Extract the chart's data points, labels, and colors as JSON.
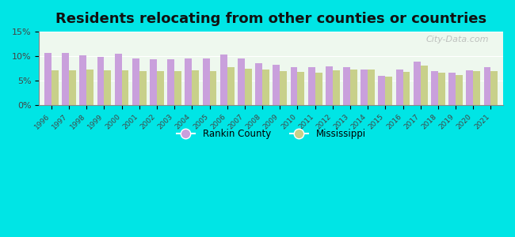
{
  "title": "Residents relocating from other counties or countries",
  "years": [
    1996,
    1997,
    1998,
    1999,
    2000,
    2001,
    2002,
    2003,
    2004,
    2005,
    2006,
    2007,
    2008,
    2009,
    2010,
    2011,
    2012,
    2013,
    2014,
    2015,
    2016,
    2017,
    2018,
    2019,
    2020,
    2021
  ],
  "rankin": [
    10.6,
    10.6,
    10.1,
    9.9,
    10.5,
    9.6,
    9.4,
    9.4,
    9.5,
    9.6,
    10.3,
    9.5,
    8.6,
    8.2,
    7.7,
    7.7,
    7.9,
    7.8,
    7.2,
    6.0,
    7.2,
    8.8,
    7.0,
    6.6,
    7.1,
    7.7
  ],
  "mississippi": [
    7.1,
    7.1,
    7.2,
    7.1,
    7.1,
    7.0,
    7.0,
    7.0,
    7.1,
    7.0,
    7.8,
    7.4,
    7.2,
    7.0,
    6.8,
    6.6,
    7.1,
    7.3,
    7.3,
    5.8,
    6.7,
    8.0,
    6.6,
    6.2,
    6.9,
    6.9
  ],
  "rankin_color": "#c9a0dc",
  "mississippi_color": "#c8d08a",
  "background_color": "#00e5e5",
  "plot_bg": "#eef8ee",
  "ylim": [
    0,
    15
  ],
  "yticks": [
    0,
    5,
    10,
    15
  ],
  "ytick_labels": [
    "0%",
    "5%",
    "10%",
    "15%"
  ],
  "bar_width": 0.4,
  "title_fontsize": 13,
  "watermark": "City-Data.com"
}
